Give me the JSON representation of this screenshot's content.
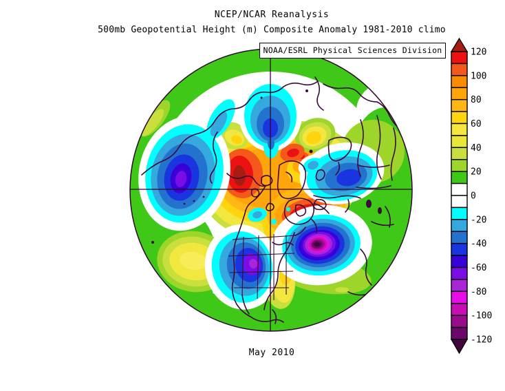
{
  "header": {
    "title": "NCEP/NCAR Reanalysis",
    "subtitle": "500mb Geopotential Height (m) Composite Anomaly 1981-2010 climo"
  },
  "source_label": "NOAA/ESRL Physical Sciences Division",
  "footer": {
    "period_label": "May 2010"
  },
  "colorbar": {
    "min": -120,
    "max": 120,
    "box_interval": 10,
    "tick_interval": 20,
    "ticks": [
      "120",
      "100",
      "80",
      "60",
      "40",
      "20",
      "0",
      "-20",
      "-40",
      "-60",
      "-80",
      "-100",
      "-120"
    ],
    "arrow_top_color": "#A81C12",
    "arrow_bottom_color": "#42063E",
    "segment_colors_top_to_bottom": [
      "#EC1212",
      "#F4581A",
      "#F98C00",
      "#FFA40A",
      "#FFB714",
      "#FFD40E",
      "#F6E73C",
      "#E9E63A",
      "#C8DF3D",
      "#9ED52B",
      "#3FC818",
      "#FFFFFF",
      "#FFFFFF",
      "#00FFFF",
      "#35A8DE",
      "#2272CE",
      "#1A35E0",
      "#3A00D8",
      "#7A0CE8",
      "#A826D6",
      "#E80CE8",
      "#C70DB4",
      "#9A0A8C",
      "#6B0769"
    ]
  },
  "chart_data": {
    "type": "heatmap",
    "title": "NCEP/NCAR Reanalysis",
    "subtitle": "500mb Geopotential Height (m) Composite Anomaly 1981-2010 climo",
    "time_period": "May 2010",
    "variable": "500mb geopotential height anomaly",
    "units": "m",
    "climatology_base": "1981-2010",
    "projection": "Northern Hemisphere polar stereographic",
    "scale": {
      "min": -120,
      "max": 120,
      "contour_interval": 10,
      "label_interval": 20
    },
    "anomaly_centers": [
      {
        "region": "Arctic pole / central Siberian side",
        "value_m": 120
      },
      {
        "region": "Hudson Bay / northeastern Canada",
        "value_m": 120
      },
      {
        "region": "Northwest Atlantic south of Greenland",
        "value_m": -130
      },
      {
        "region": "North Pacific / Bering Sea",
        "value_m": -70
      },
      {
        "region": "Western United States",
        "value_m": -80
      },
      {
        "region": "Northern and Western Europe",
        "value_m": -50
      },
      {
        "region": "Arctic Ocean north of Siberia (top-center)",
        "value_m": -40
      },
      {
        "region": "Central North Pacific",
        "value_m": 60
      },
      {
        "region": "Mid-latitude background (Russia, Atlantic, Pacific rim)",
        "value_m": 25
      }
    ],
    "legend_position": "right",
    "grid": "polar crosshair through pole"
  }
}
